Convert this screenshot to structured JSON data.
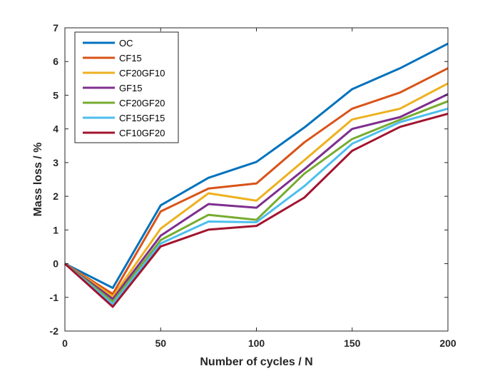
{
  "chart_data": {
    "type": "line",
    "title": "",
    "xlabel": "Number of cycles / N",
    "ylabel": "Mass loss / %",
    "x": [
      0,
      25,
      50,
      75,
      100,
      125,
      150,
      175,
      200
    ],
    "xlim": [
      0,
      200
    ],
    "ylim": [
      -2,
      7
    ],
    "xticks": [
      "0",
      "50",
      "100",
      "150",
      "200"
    ],
    "yticks": [
      "-2",
      "-1",
      "0",
      "1",
      "2",
      "3",
      "4",
      "5",
      "6",
      "7"
    ],
    "grid": false,
    "legend_position": "top-left",
    "series": [
      {
        "name": "OC",
        "color": "#0072BD",
        "values": [
          0,
          -0.72,
          1.73,
          2.55,
          3.02,
          4.04,
          5.18,
          5.8,
          6.53
        ]
      },
      {
        "name": "CF15",
        "color": "#D95319",
        "values": [
          0,
          -0.9,
          1.55,
          2.23,
          2.38,
          3.6,
          4.6,
          5.08,
          5.8
        ]
      },
      {
        "name": "CF20GF10",
        "color": "#EDB120",
        "values": [
          0,
          -0.98,
          1.04,
          2.09,
          1.87,
          3.07,
          4.28,
          4.6,
          5.35
        ]
      },
      {
        "name": "GF15",
        "color": "#7E2F8E",
        "values": [
          0,
          -1.05,
          0.83,
          1.77,
          1.66,
          2.8,
          4.0,
          4.35,
          5.03
        ]
      },
      {
        "name": "CF20GF20",
        "color": "#77AC30",
        "values": [
          0,
          -1.13,
          0.7,
          1.45,
          1.3,
          2.67,
          3.7,
          4.27,
          4.82
        ]
      },
      {
        "name": "CF15GF15",
        "color": "#4DBEEE",
        "values": [
          0,
          -1.2,
          0.6,
          1.25,
          1.23,
          2.3,
          3.56,
          4.2,
          4.6
        ]
      },
      {
        "name": "CF10GF20",
        "color": "#A2142F",
        "values": [
          0,
          -1.28,
          0.51,
          1.01,
          1.12,
          1.96,
          3.35,
          4.06,
          4.45
        ]
      }
    ]
  }
}
